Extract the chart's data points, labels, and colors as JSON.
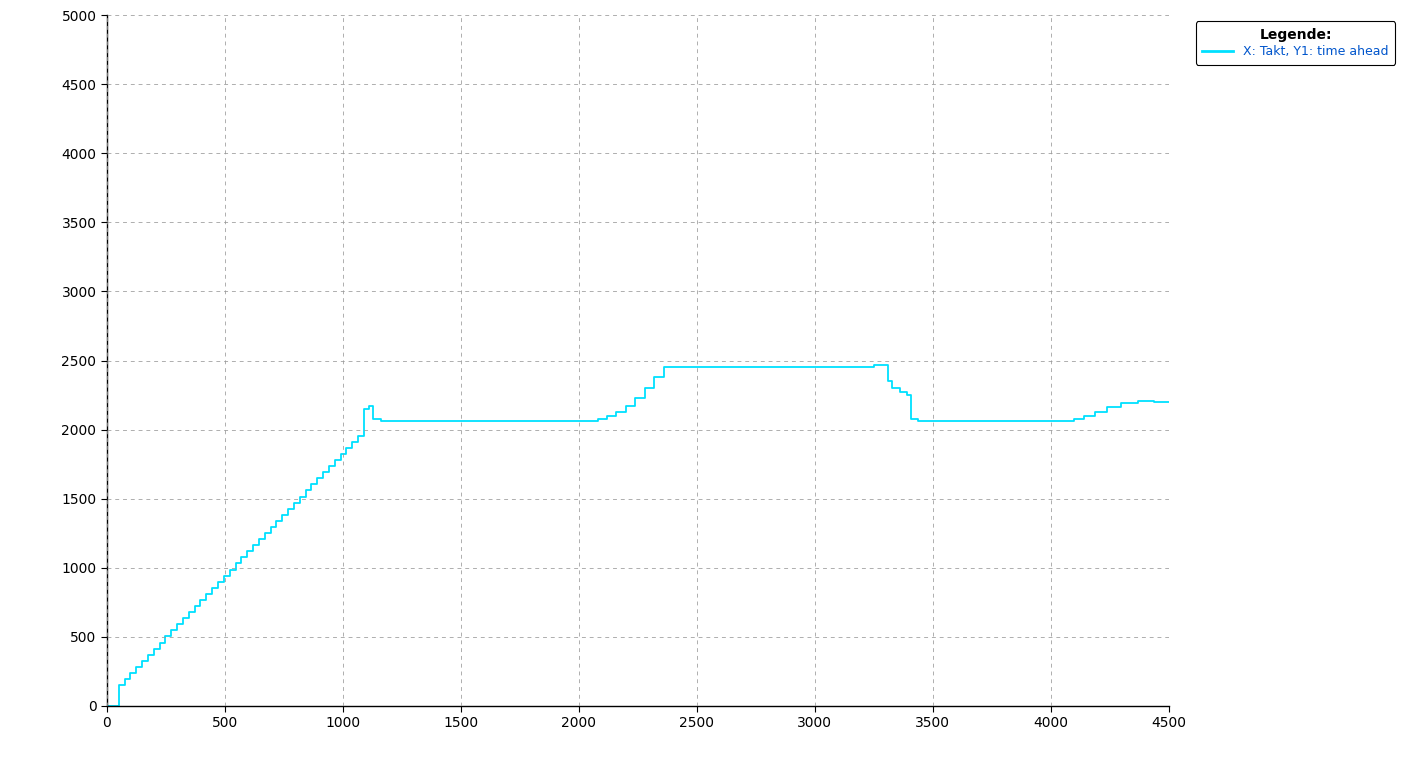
{
  "xlim": [
    0,
    4500
  ],
  "ylim": [
    0,
    5000
  ],
  "xticks": [
    0,
    500,
    1000,
    1500,
    2000,
    2500,
    3000,
    3500,
    4000,
    4500
  ],
  "yticks": [
    0,
    500,
    1000,
    1500,
    2000,
    2500,
    3000,
    3500,
    4000,
    4500,
    5000
  ],
  "line_color": "#00e0ff",
  "line_width": 1.3,
  "background_color": "#ffffff",
  "grid_color": "#999999",
  "legend_title": "Legende:",
  "legend_label": "X: Takt, Y1: time ahead",
  "legend_title_color": "#000000",
  "legend_label_color": "#0055cc",
  "tick_fontsize": 10,
  "legend_fontsize": 9,
  "legend_title_fontsize": 10
}
